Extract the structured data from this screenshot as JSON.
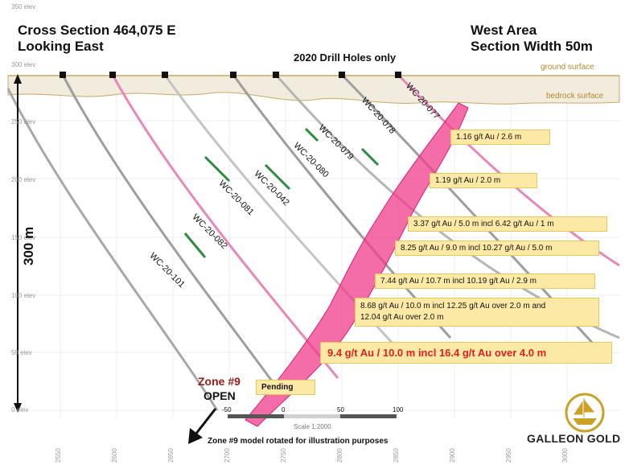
{
  "titles": {
    "cross_section": "Cross Section 464,075 E",
    "looking": "Looking East",
    "area": "West Area",
    "width": "Section Width 50m",
    "drill_holes": "2020 Drill Holes only"
  },
  "surfaces": {
    "ground": "ground surface",
    "bedrock": "bedrock surface"
  },
  "elevations": [
    "350 elev",
    "300 elev",
    "250 elev",
    "200 elev",
    "150 elev",
    "100 elev",
    "50 elev",
    "0 elev"
  ],
  "eastings": [
    "2550",
    "2600",
    "2650",
    "2700",
    "2750",
    "2800",
    "2850",
    "2900",
    "2950",
    "3000"
  ],
  "scale_bar": {
    "label": "300 m"
  },
  "drill_holes": [
    {
      "name": "WC-20-077",
      "color": "#e888b8"
    },
    {
      "name": "WC-20-078",
      "color": "#9e9e9e"
    },
    {
      "name": "WC-20-079",
      "color": "#b0b0b0"
    },
    {
      "name": "WC-20-080",
      "color": "#9e9e9e"
    },
    {
      "name": "WC-20-042",
      "color": "#c0c0c0"
    },
    {
      "name": "WC-20-081",
      "color": "#e888b8"
    },
    {
      "name": "WC-20-082",
      "color": "#9e9e9e"
    },
    {
      "name": "WC-20-101",
      "color": "#a8a8a8"
    }
  ],
  "assays": [
    "1.16 g/t Au / 2.6  m",
    "1.19 g/t Au / 2.0  m",
    "3.37 g/t Au / 5.0 m incl 6.42 g/t Au / 1 m",
    "8.25 g/t Au / 9.0 m incl 10.27  g/t Au / 5.0 m",
    "7.44 g/t Au / 10.7  m incl 10.19  g/t Au / 2.9 m",
    "8.68 g/t Au / 10.0 m incl 12.25 g/t Au over 2.0 m and",
    "12.04  g/t Au over 2.0 m",
    "9.4 g/t Au / 10.0 m incl 16.4 g/t Au over  4.0 m"
  ],
  "pending": "Pending",
  "zone": {
    "line1": "Zone #9",
    "line2": "OPEN"
  },
  "note": "Zone #9 model rotated for illustration purposes",
  "scale": {
    "ticks": [
      "-50",
      "0",
      "50",
      "100"
    ],
    "label": "Scale 1:2000"
  },
  "logo": {
    "text": "GALLEON GOLD"
  },
  "colors": {
    "zone_fill": "#f03c8c",
    "label_bg": "#fde9a6",
    "highlight_text": "#e02020",
    "zone_text": "#a01818",
    "logo_gold": "#c9a227"
  }
}
